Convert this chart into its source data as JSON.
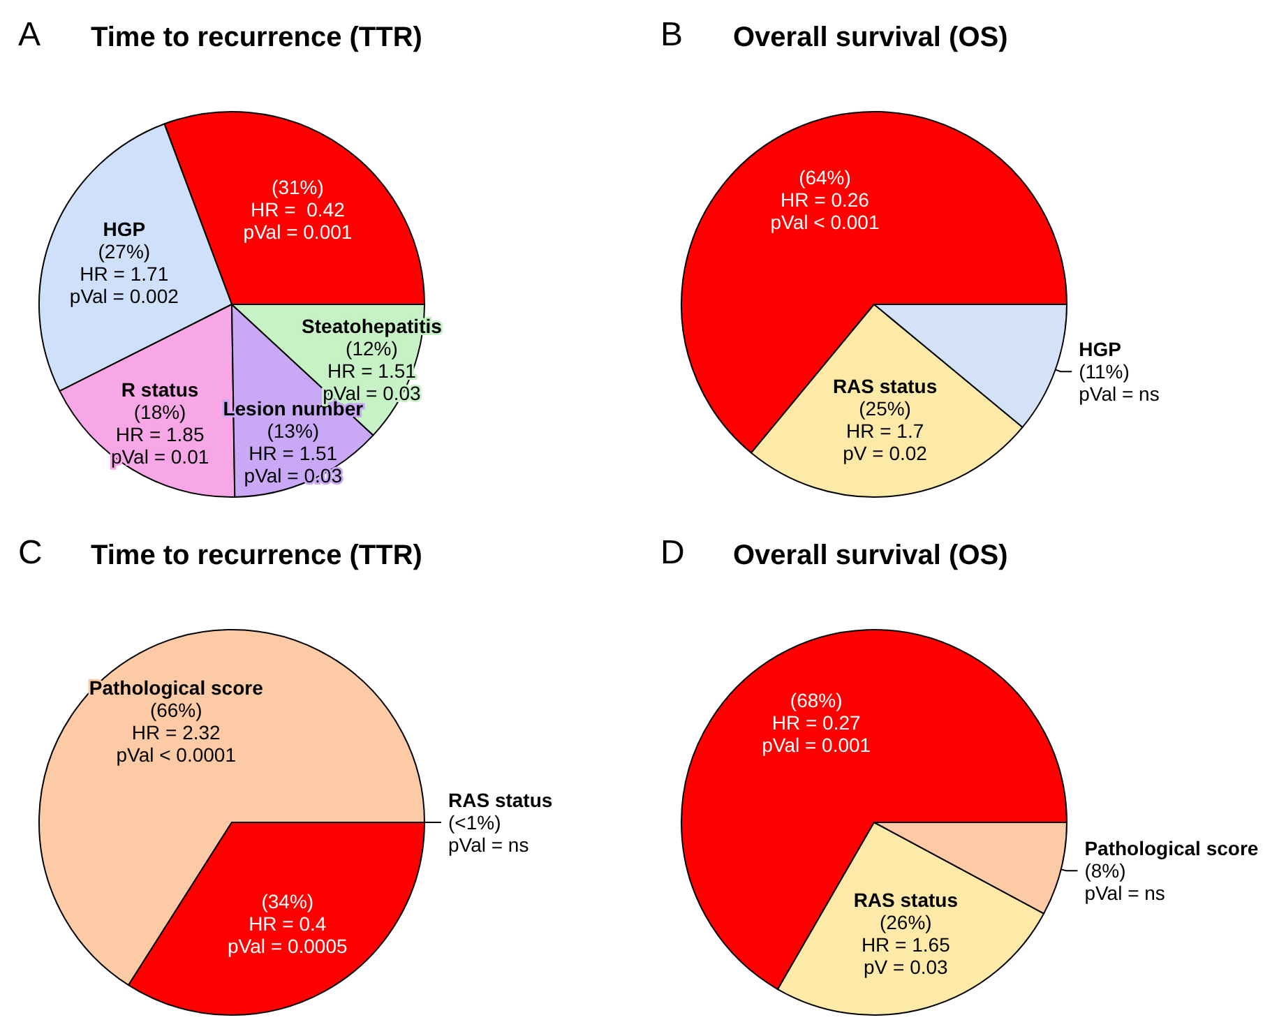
{
  "chart_data": [
    {
      "type": "pie",
      "title": "Time to recurrence (TTR)",
      "annotations": [
        "A"
      ],
      "categories": [
        null,
        "HGP",
        "R status",
        "Lesion number",
        "Steatohepatitis"
      ],
      "values": [
        31,
        27,
        18,
        13,
        12
      ],
      "colors": [
        "#ff0000",
        "#cfe0fa",
        "#f7a6e6",
        "#c9a8f5",
        "#c6f2c6"
      ],
      "value_labels": [
        "(31%)\nHR =  0.42\npVal = 0.001",
        "(27%)\nHR = 1.71\npVal = 0.002",
        "(18%)\nHR = 1.85\npVal = 0.01",
        "(13%)\nHR = 1.51\npVal = 0.03",
        "(12%)\nHR = 1.51\npVal = 0.03"
      ]
    },
    {
      "type": "pie",
      "title": "Overall survival (OS)",
      "annotations": [
        "B"
      ],
      "categories": [
        null,
        "RAS status",
        "HGP"
      ],
      "values": [
        64,
        25,
        11
      ],
      "colors": [
        "#ff0000",
        "#fde9a8",
        "#d4e2f7"
      ],
      "value_labels": [
        "(64%)\nHR = 0.26\npVal < 0.001",
        "(25%)\nHR = 1.7\npV = 0.02",
        "(11%)\npVal = ns"
      ]
    },
    {
      "type": "pie",
      "title": "Time to recurrence (TTR)",
      "annotations": [
        "C"
      ],
      "categories": [
        "Pathological score",
        null,
        "RAS status"
      ],
      "values": [
        66,
        34,
        0
      ],
      "colors": [
        "#fccaa5",
        "#ff0000",
        "#000000"
      ],
      "value_labels": [
        "(66%)\nHR = 2.32\npVal < 0.0001",
        "(34%)\nHR = 0.4\npVal = 0.0005",
        "(<1%)\npVal = ns"
      ]
    },
    {
      "type": "pie",
      "title": "Overall survival (OS)",
      "annotations": [
        "D"
      ],
      "categories": [
        null,
        "RAS status",
        "Pathological score"
      ],
      "values": [
        68,
        26,
        8
      ],
      "colors": [
        "#ff0000",
        "#fde9a8",
        "#fccaa5"
      ],
      "value_labels": [
        "(68%)\nHR = 0.27\npVal = 0.001",
        "(26%)\nHR = 1.65\npV = 0.03",
        "(8%)\npVal = ns"
      ]
    }
  ]
}
